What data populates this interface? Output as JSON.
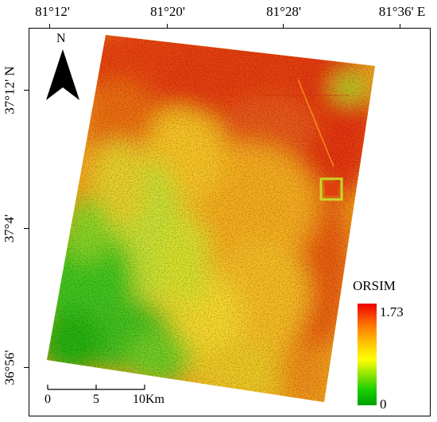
{
  "map": {
    "lon_ticks": [
      "81°12'",
      "81°20'",
      "81°28'",
      "81°36' E"
    ],
    "lat_ticks": [
      "37°12' N",
      "37°4'",
      "36°56'"
    ],
    "north_label": "N",
    "legend": {
      "title": "ORSIM",
      "max": "1.73",
      "min": "0",
      "colors": [
        "#ee0000",
        "#ff7a00",
        "#ffd000",
        "#ffff00",
        "#7fe000",
        "#18d000",
        "#00a000"
      ]
    },
    "scale_bar": {
      "labels": [
        "0",
        "5",
        "10Km"
      ]
    }
  }
}
